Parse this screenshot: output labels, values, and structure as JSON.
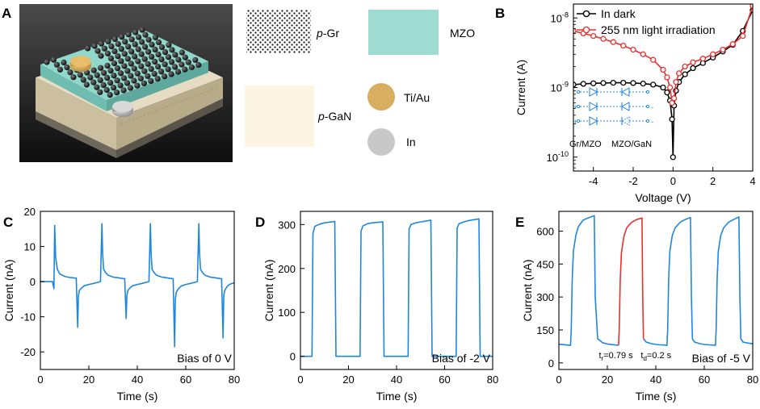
{
  "panel_a": {
    "label": "A",
    "legend": [
      {
        "name": "p-Gr",
        "prefix": "p",
        "rest": "-Gr",
        "color": "#111111"
      },
      {
        "name": "MZO",
        "prefix": "",
        "rest": "MZO",
        "color": "#9fddd2"
      },
      {
        "name": "p-GaN",
        "prefix": "p",
        "rest": "-GaN",
        "color": "#fdf5e4"
      },
      {
        "name": "Ti/Au",
        "prefix": "",
        "rest": "Ti/Au",
        "color": "#d9ae62"
      },
      {
        "name": "In",
        "prefix": "",
        "rest": "In",
        "color": "#c8c8c8"
      }
    ]
  },
  "colors": {
    "blue": "#1f86de",
    "red": "#e8302f",
    "black": "#000000"
  },
  "chart_data": [
    {
      "id": "B",
      "label": "B",
      "type": "line",
      "xlabel": "Voltage (V)",
      "ylabel": "Current (A)",
      "xlim": [
        -5,
        4
      ],
      "ylim_log": [
        -10.2,
        -7.8
      ],
      "xticks": [
        -4,
        -2,
        0,
        2,
        4
      ],
      "xtick_labels": [
        "-4",
        "-2",
        "0",
        "2",
        "4"
      ],
      "yticks": [
        -10,
        -9,
        -8
      ],
      "ytick_base": "10",
      "ytick_exponents": [
        "-10",
        "-9",
        "-8"
      ],
      "legend": [
        "In dark",
        "255 nm light irradiation"
      ],
      "inset_labels": [
        "Gr/MZO",
        "MZO/GaN"
      ],
      "series": [
        {
          "name": "In dark",
          "color": "#000000",
          "x": [
            -5,
            -4.5,
            -4,
            -3.5,
            -3,
            -2.5,
            -2,
            -1.5,
            -1,
            -0.5,
            -0.3,
            -0.15,
            -0.05,
            0,
            0.05,
            0.15,
            0.3,
            0.6,
            1,
            1.5,
            2,
            2.5,
            3,
            3.5,
            4
          ],
          "y": [
            1.1e-09,
            1.13e-09,
            1.15e-09,
            1.16e-09,
            1.17e-09,
            1.17e-09,
            1.16e-09,
            1.14e-09,
            1.1e-09,
            1e-09,
            8.5e-10,
            6.5e-10,
            3.5e-10,
            1e-10,
            5.5e-10,
            9e-10,
            1.2e-09,
            1.55e-09,
            1.9e-09,
            2.25e-09,
            2.7e-09,
            3.3e-09,
            4.1e-09,
            6.5e-09,
            1.3e-08
          ]
        },
        {
          "name": "255 nm light irradiation",
          "color": "#e8302f",
          "x": [
            -5,
            -4.5,
            -4,
            -3.5,
            -3,
            -2.5,
            -2,
            -1.5,
            -1,
            -0.5,
            -0.3,
            -0.15,
            -0.05,
            0.05,
            0.15,
            0.3,
            0.6,
            1,
            1.5,
            2,
            2.5,
            3,
            3.5,
            4
          ],
          "y": [
            6.5e-09,
            6e-09,
            5.5e-09,
            5e-09,
            4.5e-09,
            4e-09,
            3.5e-09,
            3e-09,
            2.5e-09,
            1.8e-09,
            1.4e-09,
            1e-09,
            6e-10,
            7e-10,
            1.2e-09,
            1.6e-09,
            2e-09,
            2.3e-09,
            2.6e-09,
            3e-09,
            3.5e-09,
            4.2e-09,
            5.5e-09,
            1.5e-08
          ]
        }
      ]
    },
    {
      "id": "C",
      "label": "C",
      "type": "line",
      "xlabel": "Time (s)",
      "ylabel": "Current (nA)",
      "xlim": [
        0,
        80
      ],
      "ylim": [
        -25,
        20
      ],
      "xticks": [
        0,
        20,
        40,
        60,
        80
      ],
      "yticks": [
        -20,
        -10,
        0,
        10,
        20
      ],
      "annotation": "Bias of 0 V",
      "series": [
        {
          "name": "0 V",
          "color": "#1f86de",
          "x": [
            0,
            5,
            5.6,
            5.9,
            6.3,
            7,
            8,
            10,
            12,
            14.8,
            15.4,
            15.7,
            16.1,
            17,
            18,
            20,
            22,
            24.8,
            25.4,
            25.7,
            26.1,
            27,
            28,
            30,
            32,
            34.8,
            35.4,
            35.7,
            36.1,
            37,
            38,
            40,
            42,
            44.8,
            45.4,
            45.7,
            46.1,
            47,
            48,
            50,
            52,
            54.8,
            55.4,
            55.7,
            56.1,
            57,
            58,
            60,
            62,
            64.8,
            65.4,
            65.7,
            66.1,
            67,
            68,
            70,
            72,
            74.8,
            75.4,
            75.7,
            76.1,
            77,
            78,
            80
          ],
          "y": [
            0,
            0,
            -2,
            16,
            7,
            3.5,
            2.2,
            1.5,
            1.2,
            1,
            -13,
            -4,
            -2.5,
            -1.8,
            -1.2,
            -0.8,
            -0.5,
            0,
            16.5,
            8,
            3.5,
            2.5,
            1.8,
            1.3,
            1.1,
            0.8,
            -10.5,
            -4,
            -2.5,
            -1.8,
            -1.2,
            -0.8,
            -0.5,
            0,
            16.5,
            8,
            3.5,
            2.5,
            1.8,
            1.3,
            1.1,
            0.8,
            -18.5,
            -5,
            -3,
            -2,
            -1.3,
            -0.8,
            -0.5,
            0,
            16.5,
            8,
            3.5,
            2.5,
            1.8,
            1.3,
            1.1,
            0.8,
            -16,
            -4,
            -2.5,
            -1.5,
            -0.8,
            -0.3
          ]
        }
      ]
    },
    {
      "id": "D",
      "label": "D",
      "type": "line",
      "xlabel": "Time (s)",
      "ylabel": "Current (nA)",
      "xlim": [
        0,
        80
      ],
      "ylim": [
        -30,
        330
      ],
      "xticks": [
        0,
        20,
        40,
        60,
        80
      ],
      "yticks": [
        0,
        100,
        200,
        300
      ],
      "annotation": "Bias of -2 V",
      "series": [
        {
          "name": "-2 V",
          "color": "#1f86de",
          "x": [
            0,
            4.8,
            5.2,
            6,
            8,
            10,
            14.3,
            14.8,
            24.8,
            25.2,
            26,
            28,
            30,
            34.3,
            34.8,
            44.8,
            45.2,
            46,
            48,
            50,
            54.3,
            54.8,
            64.8,
            65.2,
            66,
            68,
            70,
            74.3,
            74.8,
            80
          ],
          "y": [
            0,
            0,
            280,
            296,
            301,
            304,
            307,
            0,
            0,
            285,
            297,
            302,
            304,
            306,
            0,
            0,
            290,
            300,
            304,
            306,
            310,
            0,
            0,
            292,
            302,
            306,
            309,
            313,
            0,
            0
          ]
        }
      ]
    },
    {
      "id": "E",
      "label": "E",
      "type": "line",
      "xlabel": "Time (s)",
      "ylabel": "Current (nA)",
      "xlim": [
        0,
        80
      ],
      "ylim": [
        -30,
        690
      ],
      "xticks": [
        0,
        20,
        40,
        60,
        80
      ],
      "yticks": [
        0,
        150,
        300,
        450,
        600
      ],
      "annotation": "Bias of -5 V",
      "tr_label": {
        "main": "t",
        "sub": "r",
        "value": "=0.79 s"
      },
      "td_label": {
        "main": "t",
        "sub": "d",
        "value": "=0.2 s"
      },
      "series": [
        {
          "name": "-5 V",
          "color": "#1f86de",
          "x": [
            0,
            4.8,
            5.1,
            5.5,
            6,
            7,
            8,
            10,
            12,
            14,
            14.6,
            15,
            16,
            18,
            20,
            22,
            24,
            24.6
          ],
          "y": [
            85,
            80,
            150,
            380,
            510,
            580,
            620,
            650,
            660,
            668,
            670,
            300,
            110,
            92,
            86,
            83,
            81,
            80
          ]
        },
        {
          "name": "-5 V highlighted cycle",
          "color": "#e8302f",
          "x": [
            24.6,
            24.9,
            25.3,
            25.8,
            26.8,
            28,
            30,
            32,
            34.3,
            34.6,
            34.9
          ],
          "y": [
            80,
            150,
            370,
            500,
            575,
            615,
            640,
            652,
            660,
            300,
            110
          ]
        },
        {
          "name": "-5 V after",
          "color": "#1f86de",
          "x": [
            34.9,
            36,
            38,
            40,
            42,
            44,
            44.6,
            44.9,
            45.3,
            45.8,
            46.8,
            48,
            50,
            52,
            54.3,
            54.7,
            55.1,
            56,
            58,
            60,
            62,
            64,
            64.6,
            64.9,
            65.3,
            65.8,
            66.8,
            68,
            70,
            72,
            74.3,
            74.7,
            75.1,
            76,
            78,
            80
          ],
          "y": [
            110,
            95,
            88,
            84,
            82,
            81,
            80,
            150,
            380,
            510,
            580,
            615,
            640,
            652,
            662,
            300,
            110,
            95,
            88,
            84,
            82,
            81,
            80,
            150,
            380,
            510,
            580,
            615,
            640,
            652,
            665,
            300,
            110,
            95,
            90,
            87
          ]
        }
      ]
    }
  ]
}
